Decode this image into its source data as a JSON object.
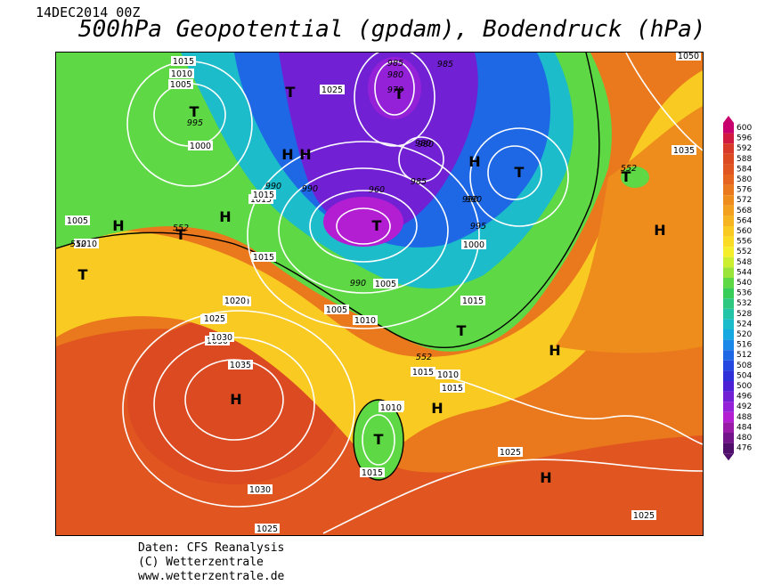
{
  "header": {
    "date": "14DEC2014 00Z",
    "title": "500hPa Geopotential (gpdam), Bodendruck (hPa)"
  },
  "footer": {
    "line1": "Daten: CFS Reanalysis",
    "line2": "(C) Wetterzentrale",
    "line3": "www.wetterzentrale.de"
  },
  "legend": {
    "levels": [
      "600",
      "596",
      "592",
      "588",
      "584",
      "580",
      "576",
      "572",
      "568",
      "564",
      "560",
      "556",
      "552",
      "548",
      "544",
      "540",
      "536",
      "532",
      "528",
      "524",
      "520",
      "516",
      "512",
      "508",
      "504",
      "500",
      "496",
      "492",
      "488",
      "484",
      "480",
      "476"
    ],
    "colors": [
      "#c8006e",
      "#d01a40",
      "#d83a2a",
      "#dc4a22",
      "#e05520",
      "#e6651e",
      "#ea781c",
      "#ee8c1c",
      "#f2a01e",
      "#f6b520",
      "#f8ca22",
      "#fadc24",
      "#f5ee2a",
      "#ccee30",
      "#9ae43a",
      "#5ed844",
      "#38cc58",
      "#2ec880",
      "#24c4a6",
      "#1cbcca",
      "#16a8e0",
      "#1a88e8",
      "#1e68e6",
      "#2448e0",
      "#3030d8",
      "#4c20d4",
      "#7220d4",
      "#9420d8",
      "#b41ed2",
      "#9a1aa8",
      "#74148a",
      "#4e0e6a"
    ]
  },
  "map": {
    "markers": [
      {
        "label": "T"
      },
      {
        "label": "T"
      },
      {
        "label": "T"
      },
      {
        "label": "T"
      },
      {
        "label": "T"
      },
      {
        "label": "T"
      },
      {
        "label": "T"
      },
      {
        "label": "T"
      },
      {
        "label": "T"
      },
      {
        "label": "T"
      },
      {
        "label": "H"
      },
      {
        "label": "H"
      },
      {
        "label": "H"
      },
      {
        "label": "H"
      },
      {
        "label": "H"
      },
      {
        "label": "H"
      },
      {
        "label": "H"
      },
      {
        "label": "H"
      },
      {
        "label": "H"
      },
      {
        "label": "H"
      }
    ],
    "isobar_labels": [
      "1015",
      "1010",
      "1005",
      "995",
      "1000",
      "1015",
      "1020",
      "1025",
      "1030",
      "990",
      "985",
      "980",
      "970",
      "960",
      "980",
      "985",
      "990",
      "995",
      "1000",
      "990",
      "1010",
      "1015",
      "1005",
      "1010",
      "1015",
      "1020",
      "1025",
      "1030",
      "1035",
      "1030",
      "1025",
      "1015",
      "1010",
      "1015",
      "1015",
      "1025",
      "1025",
      "1035",
      "1050",
      "990",
      "985",
      "980",
      "990",
      "1005",
      "1005",
      "552",
      "552",
      "552",
      "552",
      "1010",
      "1025",
      "1015",
      "1010"
    ]
  }
}
